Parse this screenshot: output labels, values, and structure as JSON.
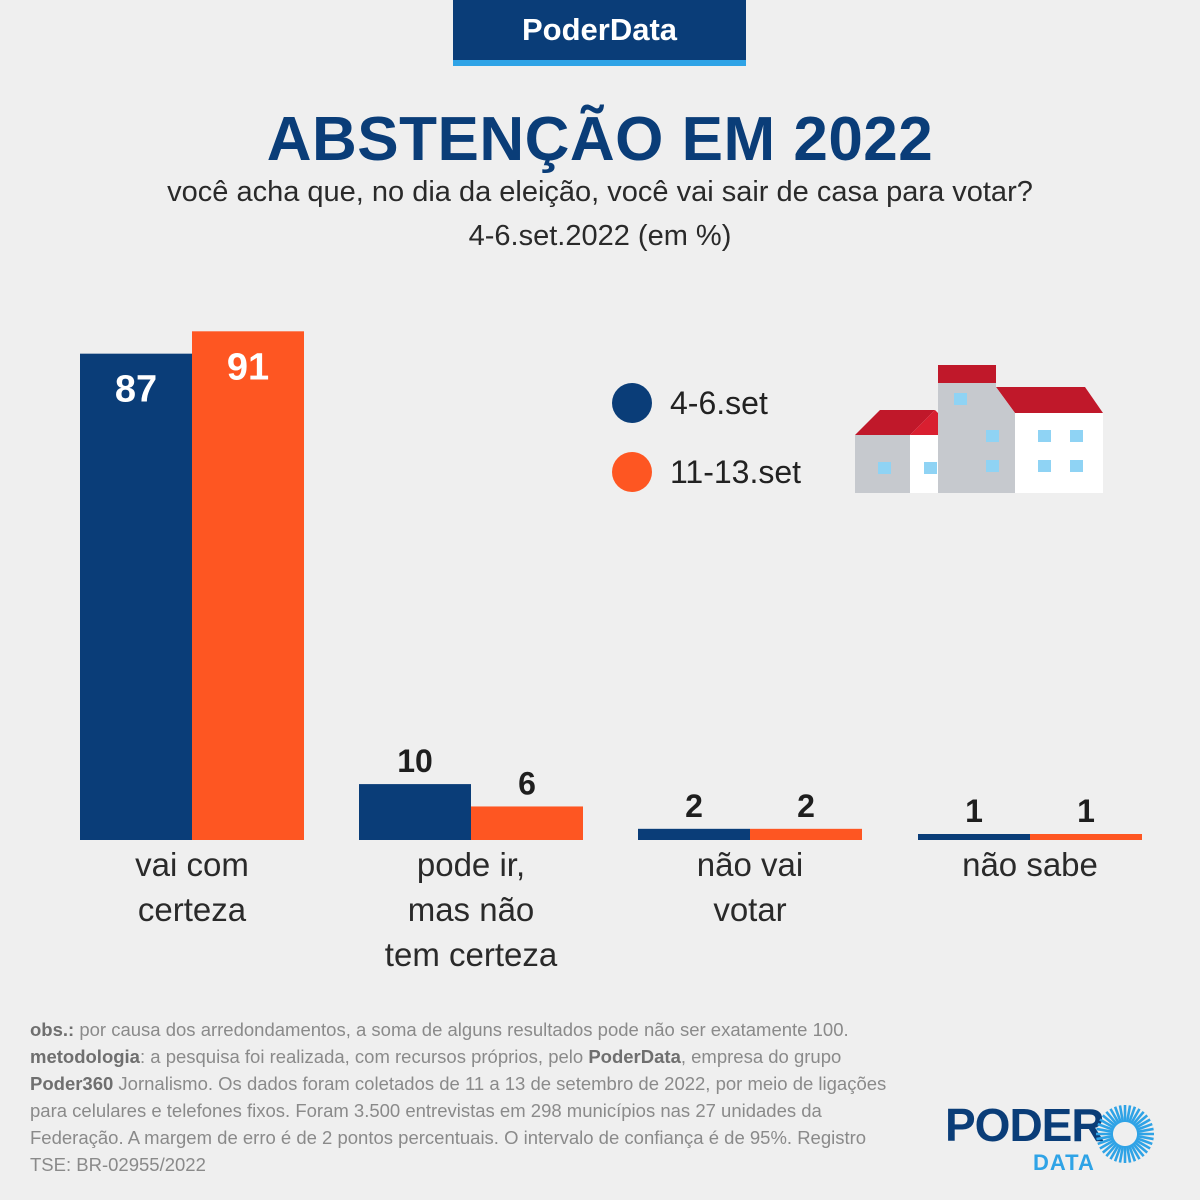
{
  "brand": {
    "tag": "PoderData"
  },
  "title": "ABSTENÇÃO EM 2022",
  "subtitle": "você acha que, no dia da eleição, você vai sair de casa para votar?",
  "period": "4-6.set.2022 (em %)",
  "colors": {
    "navy": "#0a3d78",
    "orange": "#fe5622",
    "accent": "#2fa3e6"
  },
  "chart_data": {
    "type": "bar",
    "title": "ABSTENÇÃO EM 2022",
    "ylim": [
      0,
      100
    ],
    "categories": [
      [
        "vai com",
        "certeza"
      ],
      [
        "pode ir,",
        "mas não",
        "tem certeza"
      ],
      [
        "não vai",
        "votar"
      ],
      [
        "não sabe"
      ]
    ],
    "series": [
      {
        "name": "4-6.set",
        "color": "#0a3d78",
        "values": [
          87,
          10,
          2,
          1
        ]
      },
      {
        "name": "11-13.set",
        "color": "#fe5622",
        "values": [
          91,
          6,
          2,
          1
        ]
      }
    ]
  },
  "legend": [
    {
      "label": "4-6.set",
      "color": "#0a3d78"
    },
    {
      "label": "11-13.set",
      "color": "#fe5622"
    }
  ],
  "footer": {
    "obs_label": "obs.:",
    "obs_text": " por causa dos arredondamentos, a soma de alguns resultados pode não ser exatamente 100.",
    "met_label": "metodologia",
    "met_text_1": ": a pesquisa foi realizada, com recursos próprios, pelo ",
    "met_org": "PoderData",
    "met_text_2": ", empresa do grupo ",
    "met_group": "Poder360",
    "met_text_3": " Jornalismo. Os dados foram coletados de 11 a 13 de setembro de 2022, por meio de ligações para celulares e telefones fixos. Foram 3.500 entrevistas em 298 municípios nas 27 unidades da Federação. A margem de erro é de 2 pontos percentuais. O intervalo de confiança é de 95%. Registro TSE: BR-02955/2022"
  },
  "logo": {
    "poder": "PODER",
    "data": "DATA"
  }
}
